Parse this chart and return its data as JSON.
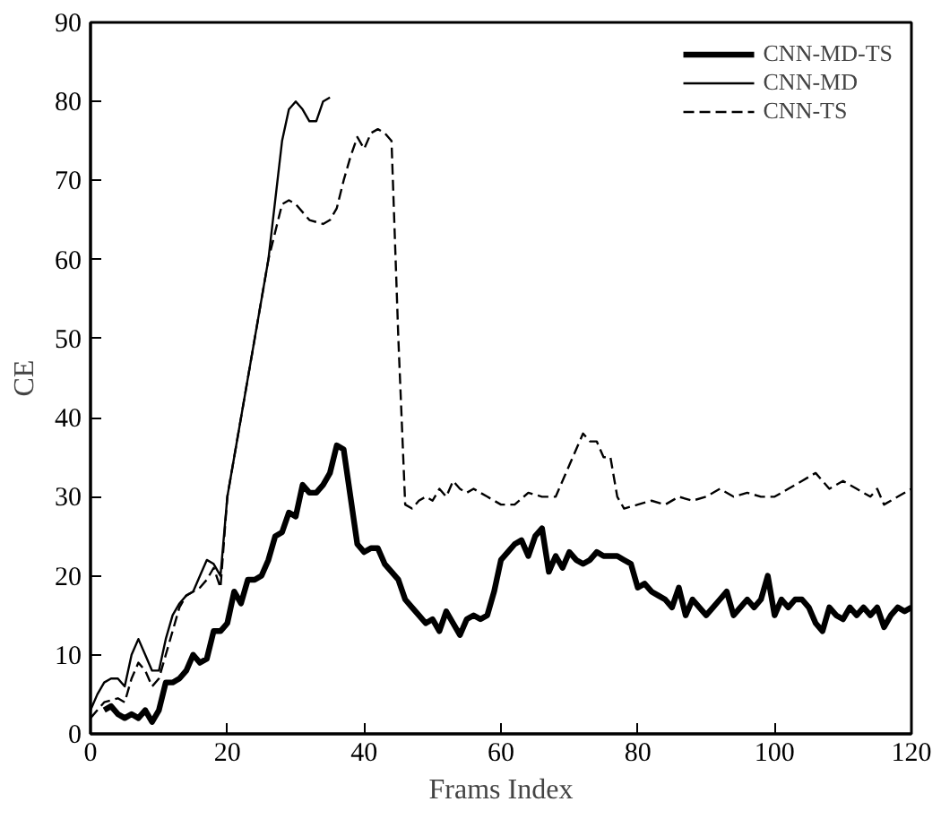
{
  "chart_data": {
    "type": "line",
    "xlabel": "Frams Index",
    "ylabel": "CE",
    "xlim": [
      0,
      120
    ],
    "ylim": [
      0,
      90
    ],
    "xticks": [
      0,
      20,
      40,
      60,
      80,
      100,
      120
    ],
    "yticks": [
      0,
      10,
      20,
      30,
      40,
      50,
      60,
      70,
      80,
      90
    ],
    "grid": false,
    "legend": "top right",
    "marker": "none",
    "series": [
      {
        "name": "CNN-MD-TS",
        "color": "#000000",
        "line_style": "solid",
        "x": [
          2,
          3,
          4,
          5,
          6,
          7,
          8,
          9,
          10,
          11,
          12,
          13,
          14,
          15,
          16,
          17,
          18,
          19,
          20,
          21,
          22,
          23,
          24,
          25,
          26,
          27,
          28,
          29,
          30,
          31,
          32,
          33,
          34,
          35,
          36,
          37,
          38,
          39,
          40,
          41,
          42,
          43,
          44,
          45,
          46,
          47,
          48,
          49,
          50,
          51,
          52,
          53,
          54,
          55,
          56,
          57,
          58,
          59,
          60,
          61,
          62,
          63,
          64,
          65,
          66,
          67,
          68,
          69,
          70,
          71,
          72,
          73,
          74,
          75,
          76,
          77,
          78,
          79,
          80,
          81,
          82,
          83,
          84,
          85,
          86,
          87,
          88,
          89,
          90,
          91,
          92,
          93,
          94,
          95,
          96,
          97,
          98,
          99,
          100,
          101,
          102,
          103,
          104,
          105,
          106,
          107,
          108,
          109,
          110,
          111,
          112,
          113,
          114,
          115,
          116,
          117,
          118,
          119,
          120
        ],
        "values": [
          3,
          3.5,
          2.5,
          2,
          2.5,
          2,
          3,
          1.5,
          3,
          6.5,
          6.5,
          7,
          8,
          10,
          9,
          9.5,
          13,
          13,
          14,
          18,
          16.5,
          19.5,
          19.5,
          20,
          22,
          25,
          25.5,
          28,
          27.5,
          31.5,
          30.5,
          30.5,
          31.5,
          33,
          36.5,
          36,
          30,
          24,
          23,
          23.5,
          23.5,
          21.5,
          20.5,
          19.5,
          17,
          16,
          15,
          14,
          14.5,
          13,
          15.5,
          14,
          12.5,
          14.5,
          15,
          14.5,
          15,
          18,
          22,
          23,
          24,
          24.5,
          22.5,
          25,
          26,
          20.5,
          22.5,
          21,
          23,
          22,
          21.5,
          22,
          23,
          22.5,
          22.5,
          22.5,
          22,
          21.5,
          18.5,
          19,
          18,
          17.5,
          17,
          16,
          18.5,
          15,
          17,
          16,
          15,
          16,
          17,
          18,
          15,
          16,
          17,
          16,
          17,
          20,
          15,
          17,
          16,
          17,
          17,
          16,
          14,
          13,
          16,
          15,
          14.5,
          16,
          15,
          16,
          15,
          16,
          13.5,
          15,
          16,
          15.5,
          16
        ]
      },
      {
        "name": "CNN-MD",
        "color": "#000000",
        "line_style": "solid",
        "x": [
          0,
          1,
          2,
          3,
          4,
          5,
          6,
          7,
          8,
          9,
          10,
          11,
          12,
          13,
          14,
          15,
          16,
          17,
          18,
          19,
          20,
          22,
          24,
          26,
          28,
          29,
          30,
          31,
          32,
          33,
          34,
          35
        ],
        "values": [
          3,
          5,
          6.5,
          7,
          7,
          6,
          10,
          12,
          10,
          8,
          8,
          12,
          15,
          16.5,
          17.5,
          18,
          20,
          22,
          21.5,
          20,
          30,
          40,
          50,
          60,
          75,
          79,
          80,
          79,
          77.5,
          77.5,
          80,
          80.5
        ]
      },
      {
        "name": "CNN-TS",
        "color": "#000000",
        "line_style": "dashed",
        "x": [
          0,
          2,
          4,
          5,
          6,
          7,
          8,
          9,
          10,
          11,
          12,
          13,
          14,
          15,
          16,
          17,
          18,
          19,
          20,
          22,
          24,
          26,
          28,
          29,
          30,
          32,
          34,
          35,
          36,
          37,
          38,
          39,
          40,
          41,
          42,
          43,
          44,
          45,
          46,
          47,
          48,
          49,
          50,
          51,
          52,
          53,
          54,
          55,
          56,
          58,
          60,
          62,
          64,
          66,
          68,
          70,
          72,
          73,
          74,
          75,
          76,
          77,
          78,
          80,
          82,
          84,
          86,
          88,
          90,
          92,
          94,
          96,
          98,
          100,
          102,
          104,
          106,
          108,
          110,
          112,
          114,
          115,
          116,
          118,
          120
        ],
        "values": [
          2,
          4,
          4.5,
          4,
          7,
          9,
          8,
          6,
          7,
          10,
          13,
          16,
          17.5,
          18,
          18.5,
          19.5,
          21,
          18.5,
          30,
          40,
          50,
          60,
          67,
          67.5,
          67,
          65,
          64.5,
          65,
          66.5,
          70,
          73,
          75.5,
          74,
          76,
          76.5,
          76,
          75,
          50,
          29,
          28.5,
          29.5,
          30,
          29.5,
          31,
          30,
          32,
          31,
          30.5,
          31,
          30,
          29,
          29,
          30.5,
          30,
          30,
          34,
          38,
          37,
          37,
          35,
          35,
          30,
          28.5,
          29,
          29.5,
          29,
          30,
          29.5,
          30,
          31,
          30,
          30.5,
          30,
          30,
          31,
          32,
          33,
          31,
          32,
          31,
          30,
          31,
          29,
          30,
          31
        ]
      }
    ]
  }
}
